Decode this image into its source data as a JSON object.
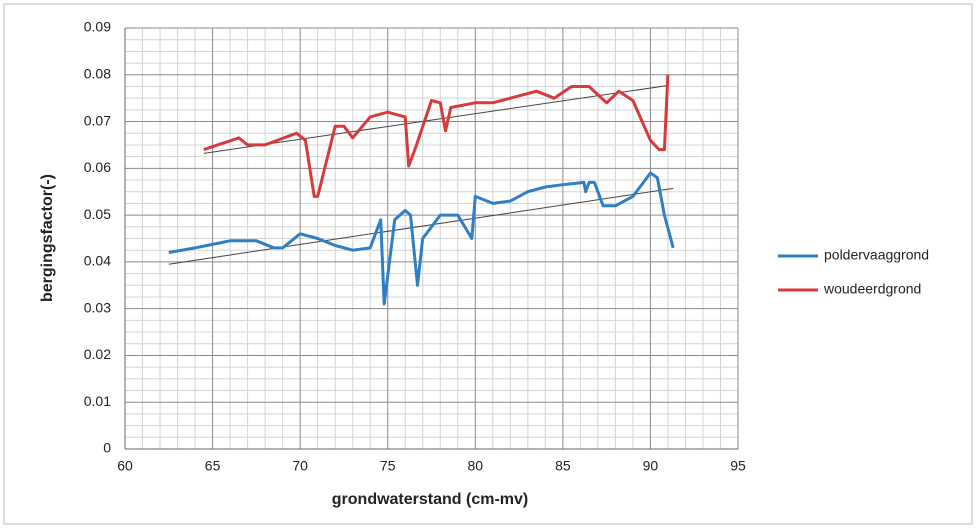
{
  "chart_data": {
    "type": "line",
    "x_label": "grondwaterstand (cm-mv)",
    "y_label": "bergingsfactor(-)",
    "xlim": [
      60,
      95
    ],
    "xticks": [
      60,
      65,
      70,
      75,
      80,
      85,
      90,
      95
    ],
    "ylim": [
      0,
      0.09
    ],
    "yticks": [
      0,
      0.01,
      0.02,
      0.03,
      0.04,
      0.05,
      0.06,
      0.07,
      0.08,
      0.09
    ],
    "grid": true,
    "minor_grid": true,
    "legend": "right",
    "series": [
      {
        "name": "poldervaaggrond",
        "color": "#2e7fc4",
        "x": [
          62.5,
          64,
          66,
          67.5,
          68.5,
          69,
          70,
          71,
          72,
          73,
          74,
          74.6,
          74.8,
          75.4,
          76,
          76.3,
          76.7,
          77,
          78,
          79,
          79.8,
          80,
          81,
          82,
          83,
          84,
          85,
          86.2,
          86.3,
          86.5,
          86.8,
          87,
          87.3,
          88,
          89,
          90,
          90.4,
          90.8,
          91.3
        ],
        "values": [
          0.042,
          0.043,
          0.0445,
          0.0445,
          0.043,
          0.043,
          0.046,
          0.045,
          0.0435,
          0.0425,
          0.043,
          0.049,
          0.031,
          0.049,
          0.051,
          0.05,
          0.035,
          0.045,
          0.05,
          0.05,
          0.045,
          0.054,
          0.0525,
          0.053,
          0.055,
          0.056,
          0.0565,
          0.057,
          0.055,
          0.057,
          0.057,
          0.055,
          0.052,
          0.052,
          0.054,
          0.059,
          0.058,
          0.05,
          0.043
        ]
      },
      {
        "name": "woudeerdgrond",
        "color": "#d63a3a",
        "x": [
          64.5,
          66.5,
          67,
          68,
          69.8,
          70.3,
          70.8,
          71,
          72,
          72.5,
          73,
          74,
          75,
          76,
          76.2,
          76.6,
          77.5,
          78,
          78.3,
          78.6,
          80,
          81,
          82,
          83.5,
          84.5,
          85.5,
          86,
          86.5,
          87.5,
          88.2,
          89,
          90,
          90.5,
          90.8,
          91
        ],
        "values": [
          0.064,
          0.0665,
          0.065,
          0.065,
          0.0675,
          0.066,
          0.054,
          0.054,
          0.069,
          0.069,
          0.0665,
          0.071,
          0.072,
          0.071,
          0.0605,
          0.0645,
          0.0745,
          0.074,
          0.068,
          0.073,
          0.074,
          0.074,
          0.075,
          0.0765,
          0.075,
          0.0775,
          0.0775,
          0.0775,
          0.074,
          0.0765,
          0.0745,
          0.066,
          0.064,
          0.064,
          0.08
        ]
      }
    ],
    "trendlines": [
      {
        "color": "#444444",
        "x": [
          62.5,
          91.3
        ],
        "values": [
          0.0395,
          0.0557
        ]
      },
      {
        "color": "#444444",
        "x": [
          64.5,
          91
        ],
        "values": [
          0.0632,
          0.0777
        ]
      }
    ]
  }
}
